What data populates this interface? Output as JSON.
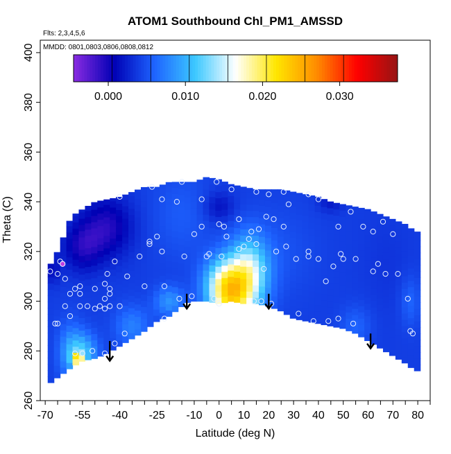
{
  "chart_data": {
    "type": "heatmap",
    "title": "ATOM1 Southbound Chl_PM1_AMSSD",
    "annotations": [
      "Flts: 2,3,4,5,6",
      "MMDD: 0801,0803,0806,0808,0812"
    ],
    "xlabel": "Latitude (deg N)",
    "ylabel": "Theta (C)",
    "xlim": [
      -72,
      85
    ],
    "ylim": [
      260,
      405
    ],
    "x_ticks": [
      -70,
      -55,
      -40,
      -25,
      -10,
      0,
      10,
      20,
      30,
      40,
      50,
      60,
      70,
      80
    ],
    "x_tick_labels": [
      "-70",
      "-55",
      "-40",
      "-25",
      "-10",
      "0",
      "10",
      "20",
      "30",
      "40",
      "50",
      "60",
      "70",
      "80"
    ],
    "x_minor_ticks": [
      -65,
      -60,
      -50,
      -45,
      -35,
      -30,
      -20,
      -15,
      -5,
      5,
      15,
      25,
      35,
      45,
      55,
      65,
      75,
      85
    ],
    "y_ticks": [
      260,
      280,
      300,
      320,
      340,
      360,
      380,
      400
    ],
    "y_tick_labels": [
      "260",
      "280",
      "300",
      "320",
      "340",
      "360",
      "380",
      "400"
    ],
    "grid": false,
    "colorbar": {
      "placement": "top-inset",
      "range": [
        -0.0045,
        0.0375
      ],
      "ticks": [
        0.0,
        0.01,
        0.02,
        0.03
      ],
      "tick_labels": [
        "0.000",
        "0.010",
        "0.020",
        "0.030"
      ],
      "bin_edges": [
        -0.0045,
        0.0005,
        0.0055,
        0.0105,
        0.0155,
        0.0205,
        0.0255,
        0.0305,
        0.0375
      ],
      "colors": [
        "#8a2be2",
        "#0000b4",
        "#1e64ff",
        "#3cc8ff",
        "#ffffff",
        "#ffe600",
        "#ff8c00",
        "#ff0000",
        "#961414"
      ]
    },
    "field": {
      "lat_nodes": [
        -69,
        -65,
        -60,
        -55,
        -50,
        -45,
        -40,
        -35,
        -30,
        -25,
        -20,
        -15,
        -10,
        -5,
        0,
        5,
        10,
        15,
        20,
        25,
        30,
        35,
        40,
        45,
        50,
        55,
        60,
        65,
        70,
        75,
        79
      ],
      "theta_nodes": [
        266,
        270,
        275,
        280,
        285,
        290,
        295,
        300,
        305,
        310,
        315,
        320,
        325,
        330,
        335,
        340,
        345,
        350
      ],
      "upper_boundary": [
        [
          -69,
          313
        ],
        [
          -66,
          318
        ],
        [
          -63,
          325
        ],
        [
          -60,
          333
        ],
        [
          -57,
          336
        ],
        [
          -55,
          337
        ],
        [
          -50,
          340
        ],
        [
          -45,
          341
        ],
        [
          -40,
          342
        ],
        [
          -35,
          344
        ],
        [
          -30,
          346
        ],
        [
          -25,
          346
        ],
        [
          -20,
          348
        ],
        [
          -15,
          348
        ],
        [
          -10,
          348
        ],
        [
          -5,
          350
        ],
        [
          0,
          349
        ],
        [
          5,
          347
        ],
        [
          10,
          346
        ],
        [
          15,
          345
        ],
        [
          20,
          345
        ],
        [
          25,
          345
        ],
        [
          30,
          344
        ],
        [
          35,
          343
        ],
        [
          40,
          342
        ],
        [
          45,
          340
        ],
        [
          50,
          339
        ],
        [
          55,
          338
        ],
        [
          60,
          337
        ],
        [
          65,
          335
        ],
        [
          70,
          333
        ],
        [
          75,
          331
        ],
        [
          79,
          328
        ]
      ],
      "lower_boundary": [
        [
          -69,
          266
        ],
        [
          -67,
          268
        ],
        [
          -64,
          270
        ],
        [
          -60,
          273
        ],
        [
          -55,
          276
        ],
        [
          -50,
          277
        ],
        [
          -45,
          279
        ],
        [
          -40,
          282
        ],
        [
          -35,
          285
        ],
        [
          -30,
          288
        ],
        [
          -25,
          292
        ],
        [
          -20,
          294
        ],
        [
          -15,
          298
        ],
        [
          -12,
          300
        ],
        [
          -8,
          300
        ],
        [
          -5,
          300
        ],
        [
          0,
          299
        ],
        [
          5,
          300
        ],
        [
          10,
          299
        ],
        [
          15,
          299
        ],
        [
          20,
          298
        ],
        [
          25,
          296
        ],
        [
          30,
          293
        ],
        [
          35,
          292
        ],
        [
          40,
          291
        ],
        [
          45,
          290
        ],
        [
          50,
          289
        ],
        [
          55,
          287
        ],
        [
          60,
          284
        ],
        [
          65,
          281
        ],
        [
          70,
          278
        ],
        [
          75,
          275
        ],
        [
          79,
          272
        ]
      ],
      "features": [
        {
          "lat": 5,
          "theta": 300,
          "value": 0.0165,
          "lat_width": 9,
          "theta_width": 13
        },
        {
          "lat": 12,
          "theta": 312,
          "value": 0.0145,
          "lat_width": 8,
          "theta_width": 14
        },
        {
          "lat": 2,
          "theta": 308,
          "value": 0.012,
          "lat_width": 8,
          "theta_width": 10
        },
        {
          "lat": -20,
          "theta": 300,
          "value": 0.0085,
          "lat_width": 6,
          "theta_width": 6
        },
        {
          "lat": -55,
          "theta": 279,
          "value": 0.011,
          "lat_width": 6,
          "theta_width": 8
        },
        {
          "lat": -57,
          "theta": 277,
          "value": 0.0185,
          "lat_width": 2,
          "theta_width": 2
        },
        {
          "lat": -60,
          "theta": 280,
          "value": 0.0075,
          "lat_width": 5,
          "theta_width": 12
        },
        {
          "lat": -35,
          "theta": 290,
          "value": 0.0075,
          "lat_width": 7,
          "theta_width": 8
        },
        {
          "lat": -45,
          "theta": 330,
          "value": -0.0005,
          "lat_width": 10,
          "theta_width": 12
        },
        {
          "lat": -55,
          "theta": 322,
          "value": 0.0,
          "lat_width": 8,
          "theta_width": 10
        },
        {
          "lat": 0,
          "theta": 338,
          "value": 0.0015,
          "lat_width": 6,
          "theta_width": 6
        },
        {
          "lat": 45,
          "theta": 340,
          "value": 0.002,
          "lat_width": 5,
          "theta_width": 4
        },
        {
          "lat": 55,
          "theta": 290,
          "value": 0.006,
          "lat_width": 6,
          "theta_width": 8
        },
        {
          "lat": 68,
          "theta": 315,
          "value": 0.0035,
          "lat_width": 10,
          "theta_width": 20
        },
        {
          "lat": 25,
          "theta": 320,
          "value": 0.005,
          "lat_width": 14,
          "theta_width": 18
        },
        {
          "lat": -15,
          "theta": 335,
          "value": 0.0055,
          "lat_width": 12,
          "theta_width": 18
        },
        {
          "lat": 77,
          "theta": 300,
          "value": 0.006,
          "lat_width": 4,
          "theta_width": 10
        },
        {
          "lat": -67,
          "theta": 313,
          "value": 0.0015,
          "lat_width": 3,
          "theta_width": 6
        }
      ],
      "background_value": 0.004
    },
    "sample_points": [
      [
        -64,
        316
      ],
      [
        -68,
        312
      ],
      [
        -65,
        311
      ],
      [
        -62,
        309
      ],
      [
        -60,
        303
      ],
      [
        -58,
        305
      ],
      [
        -56,
        306
      ],
      [
        -62,
        298
      ],
      [
        -60,
        294
      ],
      [
        -56,
        298
      ],
      [
        -53,
        298
      ],
      [
        -50,
        297
      ],
      [
        -48,
        298
      ],
      [
        -46,
        297
      ],
      [
        -44,
        298
      ],
      [
        -46,
        301
      ],
      [
        -44,
        303
      ],
      [
        -44,
        305
      ],
      [
        -46,
        307
      ],
      [
        -40,
        298
      ],
      [
        -37,
        310
      ],
      [
        -32,
        318
      ],
      [
        -28,
        324
      ],
      [
        -25,
        326
      ],
      [
        -23,
        320
      ],
      [
        -22,
        306
      ],
      [
        -22,
        293
      ],
      [
        -17,
        340
      ],
      [
        -14,
        318
      ],
      [
        -11,
        302
      ],
      [
        -10,
        327
      ],
      [
        -7,
        330
      ],
      [
        -4,
        319
      ],
      [
        -2,
        301
      ],
      [
        0,
        299
      ],
      [
        1,
        318
      ],
      [
        3,
        326
      ],
      [
        2,
        330
      ],
      [
        0,
        331
      ],
      [
        -1,
        348
      ],
      [
        -7,
        341
      ],
      [
        5,
        345
      ],
      [
        8,
        333
      ],
      [
        10,
        322
      ],
      [
        13,
        328
      ],
      [
        16,
        329
      ],
      [
        19,
        334
      ],
      [
        22,
        333
      ],
      [
        26,
        330
      ],
      [
        28,
        339
      ],
      [
        15,
        344
      ],
      [
        20,
        343
      ],
      [
        26,
        344
      ],
      [
        36,
        343
      ],
      [
        40,
        341
      ],
      [
        48,
        330
      ],
      [
        53,
        336
      ],
      [
        58,
        330
      ],
      [
        62,
        328
      ],
      [
        66,
        332
      ],
      [
        70,
        327
      ],
      [
        64,
        315
      ],
      [
        55,
        317
      ],
      [
        50,
        317
      ],
      [
        46,
        314
      ],
      [
        40,
        317
      ],
      [
        36,
        318
      ],
      [
        31,
        317
      ],
      [
        27,
        322
      ],
      [
        23,
        320
      ],
      [
        18,
        313
      ],
      [
        15,
        323
      ],
      [
        12,
        325
      ],
      [
        8,
        321
      ],
      [
        44,
        292
      ],
      [
        48,
        293
      ],
      [
        54,
        291
      ],
      [
        62,
        312
      ],
      [
        67,
        311
      ],
      [
        72,
        311
      ],
      [
        76,
        301
      ],
      [
        77,
        288
      ],
      [
        78,
        287
      ],
      [
        32,
        295
      ],
      [
        38,
        292
      ],
      [
        43,
        308
      ],
      [
        -66,
        291
      ],
      [
        -65,
        291
      ],
      [
        -58,
        279
      ],
      [
        -55,
        279
      ],
      [
        -51,
        280
      ],
      [
        -46,
        279
      ],
      [
        -42,
        283
      ],
      [
        -38,
        287
      ],
      [
        -30,
        306
      ],
      [
        -28,
        323
      ],
      [
        -23,
        341
      ],
      [
        -16,
        301
      ],
      [
        -5,
        318
      ],
      [
        14,
        300
      ],
      [
        17,
        300
      ],
      [
        21,
        299
      ],
      [
        36,
        320
      ],
      [
        49,
        319
      ],
      [
        -45,
        311
      ],
      [
        -42,
        316
      ],
      [
        -50,
        305
      ],
      [
        -56,
        303
      ],
      [
        -40,
        342
      ],
      [
        -27,
        346
      ],
      [
        -15,
        348
      ]
    ],
    "sample_point_highlights": [
      [
        -63,
        315
      ]
    ],
    "arrows": [
      {
        "lat": -44,
        "theta_start": 284,
        "theta_end": 276
      },
      {
        "lat": -13,
        "theta_start": 303,
        "theta_end": 297
      },
      {
        "lat": 20,
        "theta_start": 303,
        "theta_end": 297
      },
      {
        "lat": 61,
        "theta_start": 287,
        "theta_end": 281
      }
    ]
  }
}
